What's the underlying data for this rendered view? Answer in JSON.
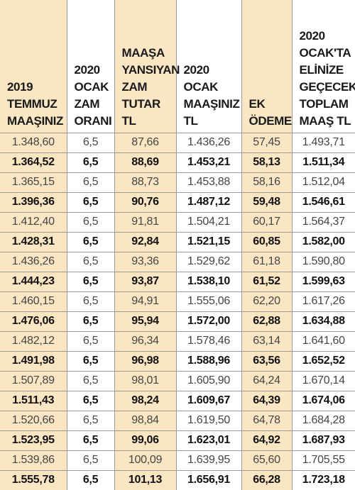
{
  "columns": [
    "2019\nTEMMUZ\nMAAŞINIZ",
    "2020\nOCAK\nZAM\nORANI",
    "MAAŞA\nYANSIYAN\nZAM\nTUTAR\nTL",
    "2020\nOCAK\nMAAŞINIZ\nTL",
    "EK\nÖDEME",
    "2020\nOCAK'TA\nELİNİZE\nGEÇECEK\nTOPLAM\nMAAŞ TL"
  ],
  "rows": [
    [
      "1.348,60",
      "6,5",
      "87,66",
      "1.436,26",
      "57,45",
      "1.493,71"
    ],
    [
      "1.364,52",
      "6,5",
      "88,69",
      "1.453,21",
      "58,13",
      "1.511,34"
    ],
    [
      "1.365,15",
      "6,5",
      "88,73",
      "1.453,88",
      "58,16",
      "1.512,04"
    ],
    [
      "1.396,36",
      "6,5",
      "90,76",
      "1.487,12",
      "59,48",
      "1.546,61"
    ],
    [
      "1.412,40",
      "6,5",
      "91,81",
      "1.504,21",
      "60,17",
      "1.564,37"
    ],
    [
      "1.428,31",
      "6,5",
      "92,84",
      "1.521,15",
      "60,85",
      "1.582,00"
    ],
    [
      "1.436,26",
      "6,5",
      "93,36",
      "1.529,62",
      "61,18",
      "1.590,80"
    ],
    [
      "1.444,23",
      "6,5",
      "93,87",
      "1.538,10",
      "61,52",
      "1.599,63"
    ],
    [
      "1.460,15",
      "6,5",
      "94,91",
      "1.555,06",
      "62,20",
      "1.617,26"
    ],
    [
      "1.476,06",
      "6,5",
      "95,94",
      "1.572,00",
      "62,88",
      "1.634,88"
    ],
    [
      "1.482,12",
      "6,5",
      "96,34",
      "1.578,46",
      "63,14",
      "1.641,60"
    ],
    [
      "1.491,98",
      "6,5",
      "96,98",
      "1.588,96",
      "63,56",
      "1.652,52"
    ],
    [
      "1.507,89",
      "6,5",
      "98,01",
      "1.605,90",
      "64,24",
      "1.670,14"
    ],
    [
      "1.511,43",
      "6,5",
      "98,24",
      "1.609,67",
      "64,39",
      "1.674,06"
    ],
    [
      "1.520,66",
      "6,5",
      "98,84",
      "1.619,50",
      "64,78",
      "1.684,28"
    ],
    [
      "1.523,95",
      "6,5",
      "99,06",
      "1.623,01",
      "64,92",
      "1.687,93"
    ],
    [
      "1.539,86",
      "6,5",
      "100,09",
      "1.639,95",
      "65,60",
      "1.705,55"
    ],
    [
      "1.555,78",
      "6,5",
      "101,13",
      "1.656,91",
      "66,28",
      "1.723,18"
    ]
  ],
  "colors": {
    "highlight": "#fbe6c4",
    "grid": "#9a9a9a"
  }
}
